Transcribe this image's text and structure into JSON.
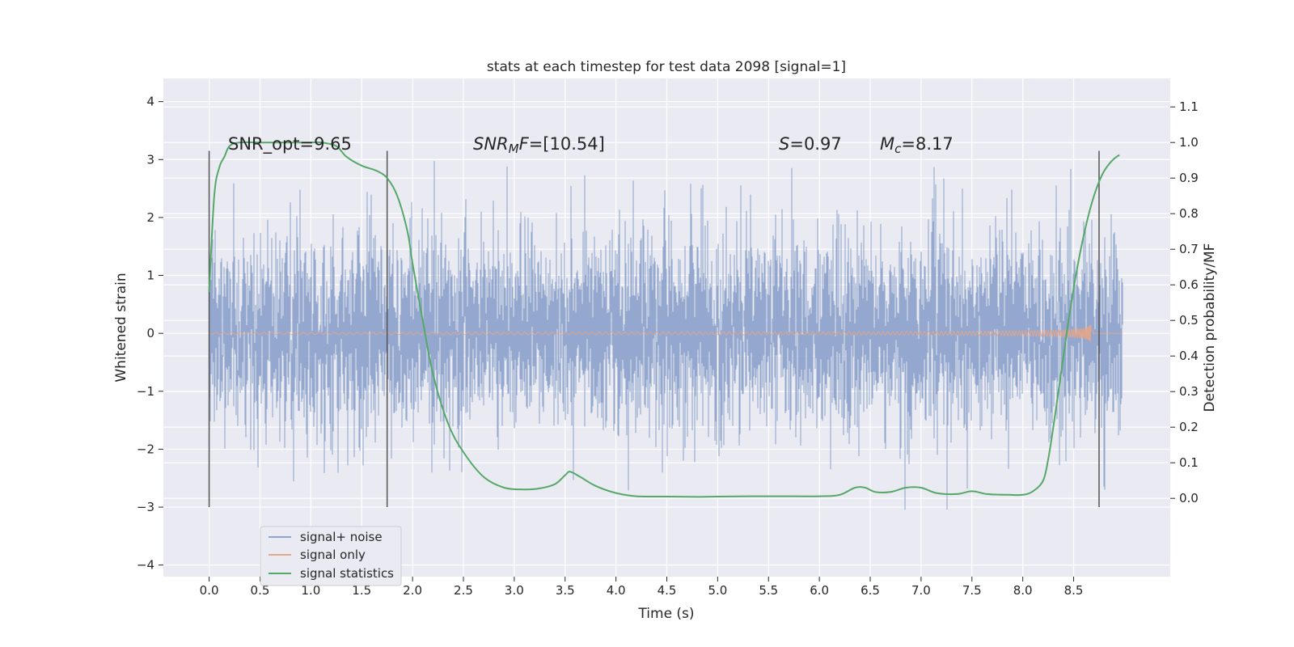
{
  "chart_data": {
    "type": "line",
    "title": "stats at each timestep for test data 2098 [signal=1]",
    "xlabel": "Time (s)",
    "ylabel": "Whitened strain",
    "y2label": "Detection probability/MF",
    "xlim": [
      -0.45,
      9.45
    ],
    "ylim": [
      -4.2,
      4.4
    ],
    "y2lim": [
      -0.22,
      1.18
    ],
    "xticks": [
      "0.0",
      "0.5",
      "1.0",
      "1.5",
      "2.0",
      "2.5",
      "3.0",
      "3.5",
      "4.0",
      "4.5",
      "5.0",
      "5.5",
      "6.0",
      "6.5",
      "7.0",
      "7.5",
      "8.0",
      "8.5"
    ],
    "xtick_values": [
      0,
      0.5,
      1,
      1.5,
      2,
      2.5,
      3,
      3.5,
      4,
      4.5,
      5,
      5.5,
      6,
      6.5,
      7,
      7.5,
      8,
      8.5
    ],
    "yticks": [
      "−4",
      "−3",
      "−2",
      "−1",
      "0",
      "1",
      "2",
      "3",
      "4"
    ],
    "ytick_values": [
      -4,
      -3,
      -2,
      -1,
      0,
      1,
      2,
      3,
      4
    ],
    "y2ticks": [
      "0.0",
      "0.1",
      "0.2",
      "0.3",
      "0.4",
      "0.5",
      "0.6",
      "0.7",
      "0.8",
      "0.9",
      "1.0",
      "1.1"
    ],
    "y2tick_values": [
      0,
      0.1,
      0.2,
      0.3,
      0.4,
      0.5,
      0.6,
      0.7,
      0.8,
      0.9,
      1.0,
      1.1
    ],
    "annotations": {
      "snr_opt": "SNR_opt=9.65",
      "snr_mf_name": "SNR",
      "snr_mf_sub": "M",
      "snr_mf_tail": "F",
      "snr_mf_value": "=[10.54]",
      "s_name": "S",
      "s_value": "=0.97",
      "mc_name": "M",
      "mc_sub": "c",
      "mc_value": "=8.17"
    },
    "window_lines": [
      0.0,
      1.75,
      8.75
    ],
    "window_line_ylim": [
      -3,
      3.15
    ],
    "series": [
      {
        "name": "signal+ noise",
        "color": "#8fa3cc",
        "description": "noisy whitened strain, roughly gaussian with sd ~0.8",
        "t_start": 0.0,
        "t_end": 8.98
      },
      {
        "name": "signal only",
        "color": "#e3a68a",
        "description": "chirp waveform growing toward merger at ~8.67 s",
        "t_start": 0.0,
        "t_end": 8.98,
        "merger_time": 8.67
      },
      {
        "name": "signal statistics",
        "color": "#55a868",
        "axis": "right",
        "x": [
          0.0,
          0.05,
          0.1,
          0.15,
          0.2,
          0.3,
          0.5,
          0.8,
          1.0,
          1.1,
          1.25,
          1.35,
          1.5,
          1.65,
          1.75,
          1.85,
          1.95,
          2.0,
          2.1,
          2.2,
          2.35,
          2.5,
          2.7,
          2.9,
          3.1,
          3.25,
          3.4,
          3.5,
          3.55,
          3.65,
          3.8,
          4.0,
          4.2,
          4.5,
          4.8,
          5.0,
          5.5,
          6.0,
          6.2,
          6.35,
          6.45,
          6.55,
          6.7,
          6.85,
          7.0,
          7.15,
          7.35,
          7.5,
          7.65,
          7.85,
          8.0,
          8.1,
          8.2,
          8.25,
          8.3,
          8.35,
          8.4,
          8.45,
          8.5,
          8.55,
          8.6,
          8.65,
          8.7,
          8.75,
          8.8,
          8.85,
          8.9,
          8.95
        ],
        "y": [
          0.58,
          0.85,
          0.93,
          0.96,
          0.99,
          1.0,
          1.0,
          1.0,
          1.0,
          1.0,
          0.99,
          0.96,
          0.935,
          0.92,
          0.9,
          0.85,
          0.75,
          0.66,
          0.5,
          0.35,
          0.21,
          0.13,
          0.06,
          0.03,
          0.025,
          0.028,
          0.04,
          0.065,
          0.075,
          0.06,
          0.035,
          0.015,
          0.006,
          0.005,
          0.004,
          0.005,
          0.006,
          0.006,
          0.01,
          0.03,
          0.03,
          0.018,
          0.018,
          0.03,
          0.03,
          0.015,
          0.012,
          0.02,
          0.012,
          0.01,
          0.01,
          0.02,
          0.05,
          0.11,
          0.2,
          0.3,
          0.4,
          0.5,
          0.59,
          0.67,
          0.74,
          0.8,
          0.85,
          0.89,
          0.92,
          0.94,
          0.955,
          0.965
        ]
      }
    ],
    "legend": [
      "signal+ noise",
      "signal only",
      "signal statistics"
    ],
    "legend_position": "lower-left",
    "grid": true
  }
}
